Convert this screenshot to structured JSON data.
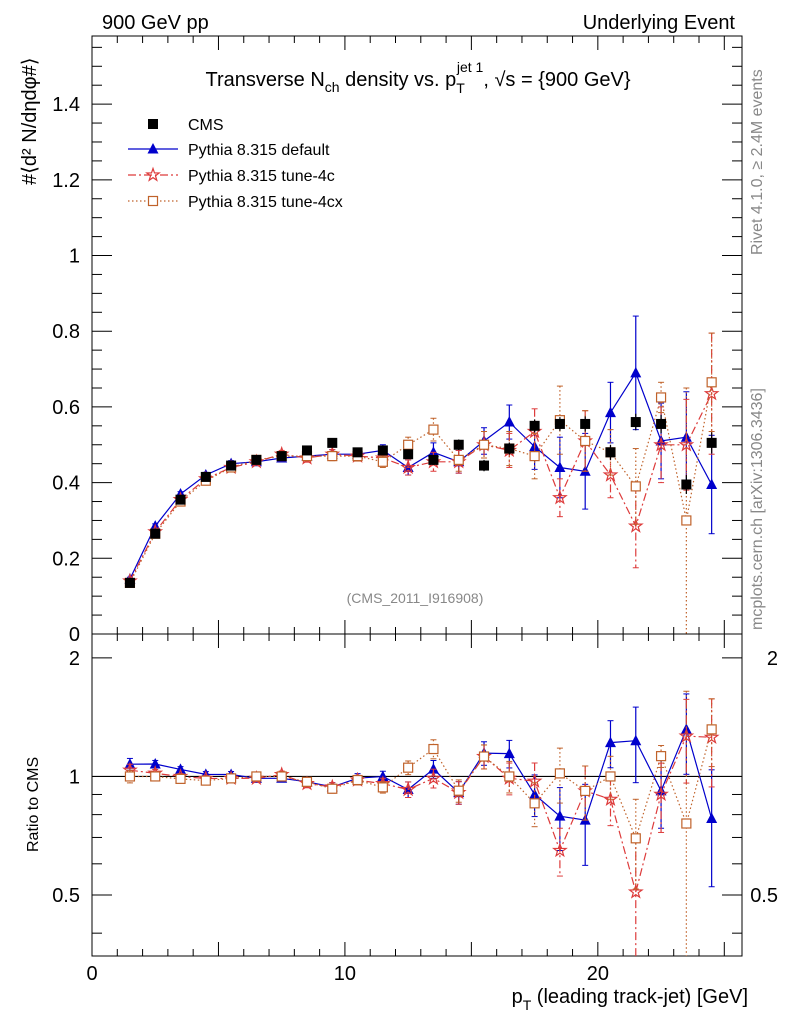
{
  "header": {
    "left": "900 GeV pp",
    "right": "Underlying Event"
  },
  "side": {
    "rivet": "Rivet 4.1.0, ≥ 2.4M events",
    "mcplots": "mcplots.cern.ch [arXiv:1306.3436]"
  },
  "colors": {
    "cms": "#000000",
    "default": "#0000cc",
    "tune4c": "#dd3b3b",
    "tune4cx": "#c0622a"
  },
  "chart_data": {
    "type": "scatter",
    "title_parts": {
      "t1": "Transverse N",
      "t1sub": "ch",
      "t2": " density vs. p",
      "t2sub": "T",
      "t2sup": "jet 1",
      "t3": ", √s = {900 GeV}"
    },
    "watermark": "(CMS_2011_I916908)",
    "ylabel": "#⟨d² N/dηdφ#⟩",
    "ratio_ylabel": "Ratio to CMS",
    "xlabel_p": "p",
    "xlabel_sub": "T",
    "xlabel_rest": " (leading track-jet) [GeV]",
    "xlim": [
      0,
      25.7
    ],
    "ylim": [
      0,
      1.58
    ],
    "ratio_ylim": [
      0.35,
      2.3
    ],
    "x_ticks": [
      0,
      10,
      20
    ],
    "y_ticks": [
      0,
      0.2,
      0.4,
      0.6,
      0.8,
      1,
      1.2,
      1.4
    ],
    "y_tick_labels": [
      "0",
      "0.2",
      "0.4",
      "0.6",
      "0.8",
      "1",
      "1.2",
      "1.4"
    ],
    "ratio_ticks": [
      0.5,
      1,
      2
    ],
    "ratio_tick_labels": [
      "0.5",
      "1",
      "2"
    ],
    "x": [
      1.5,
      2.5,
      3.5,
      4.5,
      5.5,
      6.5,
      7.5,
      8.5,
      9.5,
      10.5,
      11.5,
      12.5,
      13.5,
      14.5,
      15.5,
      16.5,
      17.5,
      18.5,
      19.5,
      20.5,
      21.5,
      22.5,
      23.5,
      24.5
    ],
    "series": [
      {
        "name": "CMS",
        "key": "cms",
        "marker": "square",
        "line": "none",
        "values": [
          0.135,
          0.265,
          0.355,
          0.415,
          0.445,
          0.46,
          0.47,
          0.485,
          0.505,
          0.48,
          0.485,
          0.475,
          0.46,
          0.5,
          0.445,
          0.49,
          0.55,
          0.555,
          0.555,
          0.48,
          0.56,
          0.555,
          0.395,
          0.505
        ],
        "errors": [
          0.005,
          0.006,
          0.007,
          0.008,
          0.008,
          0.009,
          0.009,
          0.01,
          0.01,
          0.01,
          0.011,
          0.012,
          0.013,
          0.014,
          0.015,
          0.016,
          0.017,
          0.018,
          0.02,
          0.02,
          0.022,
          0.024,
          0.025,
          0.028
        ]
      },
      {
        "name": "Pythia 8.315 default",
        "key": "default",
        "marker": "triangle",
        "line": "solid",
        "values": [
          0.145,
          0.285,
          0.37,
          0.42,
          0.45,
          0.455,
          0.465,
          0.47,
          0.475,
          0.475,
          0.485,
          0.44,
          0.48,
          0.455,
          0.51,
          0.56,
          0.495,
          0.44,
          0.43,
          0.585,
          0.69,
          0.51,
          0.52,
          0.395
        ],
        "errors": [
          0.005,
          0.006,
          0.006,
          0.007,
          0.008,
          0.009,
          0.01,
          0.011,
          0.012,
          0.013,
          0.015,
          0.02,
          0.025,
          0.03,
          0.035,
          0.045,
          0.06,
          0.08,
          0.1,
          0.08,
          0.15,
          0.1,
          0.12,
          0.13
        ]
      },
      {
        "name": "Pythia 8.315 tune-4c",
        "key": "tune4c",
        "marker": "star",
        "line": "dashdot",
        "values": [
          0.14,
          0.27,
          0.355,
          0.41,
          0.44,
          0.455,
          0.475,
          0.465,
          0.475,
          0.47,
          0.465,
          0.44,
          0.455,
          0.455,
          0.5,
          0.485,
          0.535,
          0.36,
          0.51,
          0.42,
          0.285,
          0.5,
          0.5,
          0.635
        ],
        "errors": [
          0.005,
          0.006,
          0.006,
          0.007,
          0.008,
          0.009,
          0.01,
          0.011,
          0.012,
          0.013,
          0.015,
          0.02,
          0.025,
          0.03,
          0.035,
          0.045,
          0.06,
          0.05,
          0.08,
          0.06,
          0.11,
          0.1,
          0.12,
          0.16
        ]
      },
      {
        "name": "Pythia 8.315 tune-4cx",
        "key": "tune4cx",
        "marker": "opensquare",
        "line": "dotted",
        "values": [
          0.135,
          0.265,
          0.35,
          0.405,
          0.44,
          0.46,
          0.47,
          0.47,
          0.47,
          0.47,
          0.455,
          0.5,
          0.54,
          0.46,
          0.5,
          0.49,
          0.47,
          0.565,
          0.51,
          0.48,
          0.39,
          0.625,
          0.3,
          0.665
        ],
        "errors": [
          0.005,
          0.006,
          0.006,
          0.007,
          0.008,
          0.009,
          0.01,
          0.011,
          0.012,
          0.013,
          0.015,
          0.02,
          0.03,
          0.03,
          0.035,
          0.045,
          0.06,
          0.09,
          0.08,
          0.06,
          0.1,
          0.04,
          0.35,
          0.13
        ]
      }
    ]
  }
}
